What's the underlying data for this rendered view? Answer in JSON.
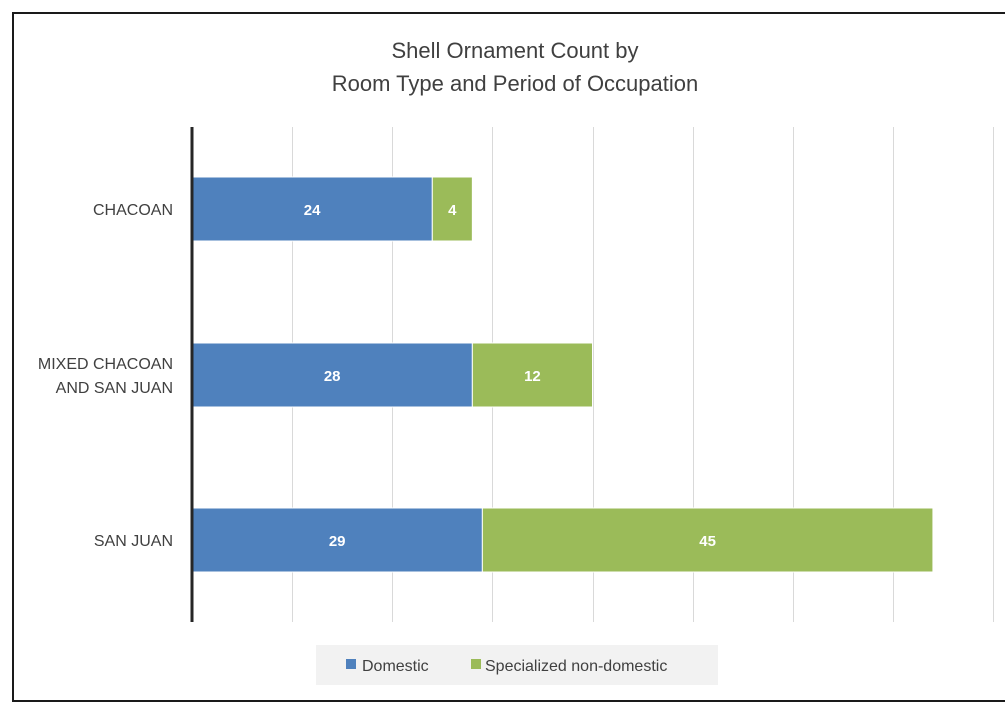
{
  "chart_data": {
    "type": "bar",
    "orientation": "horizontal",
    "stacked": true,
    "title": [
      "Shell Ornament Count by",
      "Room Type and Period of Occupation"
    ],
    "categories": [
      [
        "CHACOAN"
      ],
      [
        "MIXED CHACOAN",
        "AND SAN JUAN"
      ],
      [
        "SAN JUAN"
      ]
    ],
    "series": [
      {
        "name": "Domestic",
        "color": "#4f81bd",
        "values": [
          24,
          28,
          29
        ]
      },
      {
        "name": "Specialized non-domestic",
        "color": "#9bbb59",
        "values": [
          4,
          12,
          45
        ]
      }
    ],
    "xlim": [
      0,
      80
    ],
    "grid": true,
    "legend_position": "bottom"
  }
}
